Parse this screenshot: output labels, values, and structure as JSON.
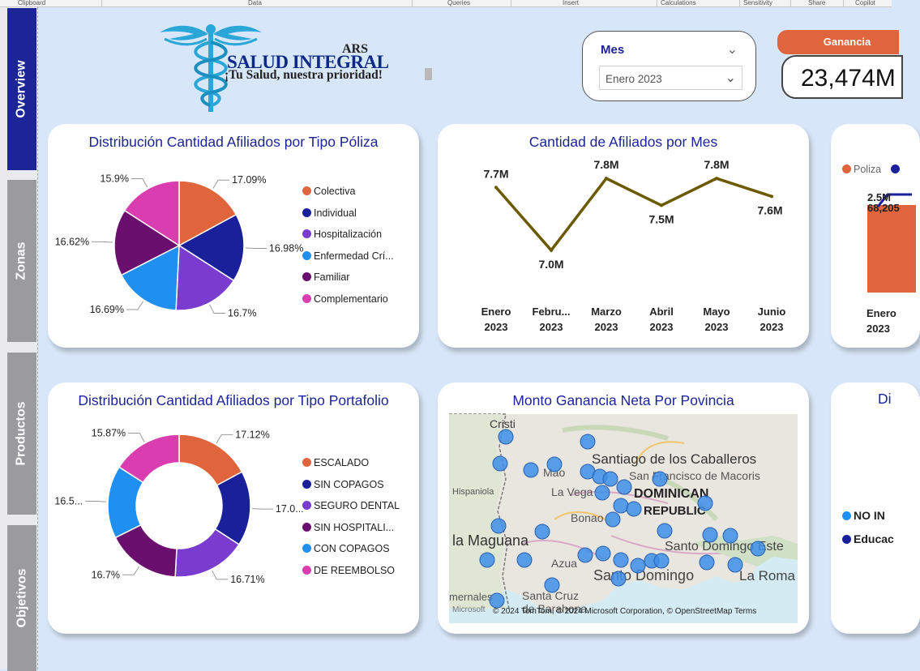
{
  "ribbon": {
    "sections": [
      "Clipboard",
      "Data",
      "Queries",
      "Insert",
      "Calculations",
      "Sensitivity",
      "Share",
      "Copilot"
    ]
  },
  "nav": {
    "tabs": [
      {
        "label": "Overview",
        "active": true
      },
      {
        "label": "Zonas",
        "active": false
      },
      {
        "label": "Productos",
        "active": false
      },
      {
        "label": "Objetivos",
        "active": false
      }
    ]
  },
  "logo": {
    "ars": "ARS",
    "name": "SALUD INTEGRAL",
    "slogan": "¡Tu Salud, nuestra prioridad!"
  },
  "slicer": {
    "title": "Mes",
    "value": "Enero 2023"
  },
  "kpi": {
    "label": "Ganancia",
    "value": "23,474M"
  },
  "colors": {
    "primary": "#1c2596",
    "accent": "#e0643c",
    "line": "#6b5a00",
    "marker": "#3d8ee8"
  },
  "pie_poliza": {
    "title": "Distribución Cantidad Afiliados por Tipo Póliza",
    "chart_data": {
      "type": "pie",
      "slices": [
        {
          "name": "Colectiva",
          "value": 17.09,
          "label": "17.09%",
          "color": "#e0643c"
        },
        {
          "name": "Individual",
          "value": 16.98,
          "label": "16.98%",
          "color": "#1a1f9a"
        },
        {
          "name": "Hospitalización",
          "value": 16.7,
          "label": "16.7%",
          "color": "#7a3ccf"
        },
        {
          "name": "Enfermedad Crí...",
          "value": 16.69,
          "label": "16.69%",
          "color": "#1f8ff0"
        },
        {
          "name": "Familiar",
          "value": 16.62,
          "label": "16.62%",
          "color": "#6b0f6e"
        },
        {
          "name": "Complementario",
          "value": 15.9,
          "label": "15.9%",
          "color": "#d93db0"
        }
      ]
    }
  },
  "line_afiliados": {
    "title": "Cantidad de Afiliados por Mes",
    "chart_data": {
      "type": "line",
      "categories": [
        {
          "line1": "Enero",
          "line2": "2023"
        },
        {
          "line1": "Febru...",
          "line2": "2023"
        },
        {
          "line1": "Marzo",
          "line2": "2023"
        },
        {
          "line1": "Abril",
          "line2": "2023"
        },
        {
          "line1": "Mayo",
          "line2": "2023"
        },
        {
          "line1": "Junio",
          "line2": "2023"
        }
      ],
      "values": [
        7.7,
        7.0,
        7.8,
        7.5,
        7.8,
        7.6
      ],
      "labels": [
        "7.7M",
        "7.0M",
        "7.8M",
        "7.5M",
        "7.8M",
        "7.6M"
      ],
      "ylim": [
        6.8,
        8.0
      ]
    }
  },
  "partial_card": {
    "legend": "Poliza",
    "value_label": "2.5M",
    "bar_label": "68,205",
    "category_line1": "Enero",
    "category_line2": "2023"
  },
  "donut_portafolio": {
    "title": "Distribución Cantidad Afiliados por Tipo Portafolio",
    "chart_data": {
      "type": "pie",
      "slices": [
        {
          "name": "ESCALADO",
          "value": 17.12,
          "label": "17.12%",
          "color": "#e0643c"
        },
        {
          "name": "SIN COPAGOS",
          "value": 17.0,
          "label": "17.0...",
          "color": "#1a1f9a"
        },
        {
          "name": "SEGURO DENTAL",
          "value": 16.71,
          "label": "16.71%",
          "color": "#7a3ccf"
        },
        {
          "name": "SIN HOSPITALI...",
          "value": 16.7,
          "label": "16.7%",
          "color": "#6b0f6e"
        },
        {
          "name": "CON COPAGOS",
          "value": 16.5,
          "label": "16.5...",
          "color": "#1f8ff0"
        },
        {
          "name": "DE REEMBOLSO",
          "value": 15.87,
          "label": "15.87%",
          "color": "#d93db0"
        }
      ]
    }
  },
  "map": {
    "title": "Monto Ganancia Neta Por Povincia",
    "labels": {
      "cristi": "Cristi",
      "santiago": "Santiago de los Caballeros",
      "sanfrancisco": "San Francisco de Macoris",
      "hispaniola": "Hispaniola",
      "mao": "Mao",
      "lavega": "La Vega",
      "dominican": "DOMINICAN",
      "republic": "REPUBLIC",
      "bonao": "Bonao",
      "maguana": "la Maguana",
      "santodomingoeste": "Santo Domingo Este",
      "azua": "Azua",
      "santodomingo": "Santo Domingo",
      "laromana": "La Roma",
      "santacruz": "Santa Cruz",
      "barahona": "de Barahona",
      "mernales": "mernales"
    },
    "microsoft": "Microsoft",
    "attribution": "© 2024 TomTom, © 2024 Microsoft Corporation, © OpenStreetMap  Terms"
  },
  "partial_card_2": {
    "title": "Di",
    "legend": [
      {
        "label": "NO IN",
        "color": "#1f8ff0"
      },
      {
        "label": "Educac",
        "color": "#1a1f9a"
      }
    ]
  }
}
